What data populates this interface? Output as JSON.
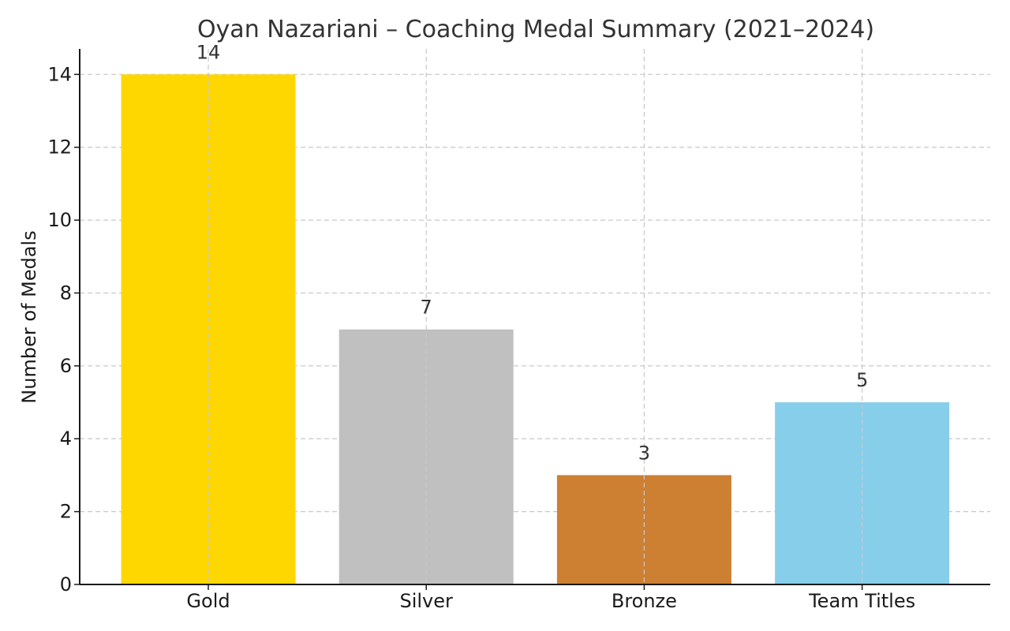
{
  "chart_data": {
    "type": "bar",
    "title": "Oyan Nazariani – Coaching Medal Summary (2021–2024)",
    "xlabel": "",
    "ylabel": "Number of Medals",
    "categories": [
      "Gold",
      "Silver",
      "Bronze",
      "Team Titles"
    ],
    "values": [
      14,
      7,
      3,
      5
    ],
    "data_labels": [
      "14",
      "7",
      "3",
      "5"
    ],
    "colors": [
      "#FFD700",
      "#C0C0C0",
      "#CD7F32",
      "#87CEEB"
    ],
    "ylim": [
      0,
      14.7
    ],
    "yticks": [
      0,
      2,
      4,
      6,
      8,
      10,
      12,
      14
    ],
    "grid": true,
    "legend": "none"
  }
}
